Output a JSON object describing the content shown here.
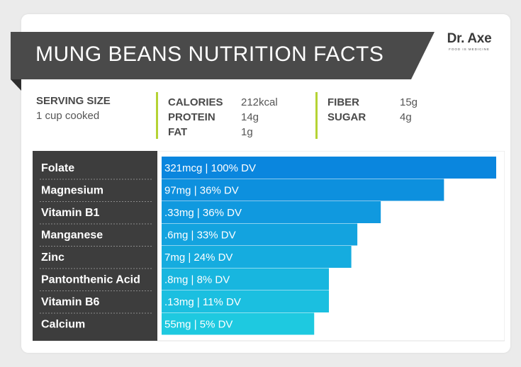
{
  "title": "MUNG BEANS NUTRITION FACTS",
  "brand": {
    "name": "Dr. Axe",
    "tagline": "FOOD IS MEDICINE"
  },
  "facts": {
    "serving_size_label": "SERVING SIZE",
    "serving_size_value": "1 cup cooked",
    "calories_label": "CALORIES",
    "calories_value": "212kcal",
    "protein_label": "PROTEIN",
    "protein_value": "14g",
    "fat_label": "FAT",
    "fat_value": "1g",
    "fiber_label": "FIBER",
    "fiber_value": "15g",
    "sugar_label": "SUGAR",
    "sugar_value": "4g"
  },
  "colors": {
    "banner": "#4a4a4a",
    "accent": "#b5d334",
    "label_panel": "#3d3d3d",
    "bar_top": "#0a86de",
    "bar_bottom": "#1ec9e0"
  },
  "chart_data": {
    "type": "bar",
    "orientation": "horizontal",
    "categories": [
      "Folate",
      "Magnesium",
      "Vitamin B1",
      "Manganese",
      "Zinc",
      "Pantonthenic Acid",
      "Vitamin B6",
      "Calcium"
    ],
    "values": [
      100,
      36,
      36,
      33,
      24,
      8,
      11,
      5
    ],
    "labels": [
      "321mcg | 100% DV",
      "97mg | 36% DV",
      ".33mg | 36% DV",
      ".6mg | 33% DV",
      "7mg | 24% DV",
      ".8mg | 8% DV",
      ".13mg | 11% DV",
      "55mg | 5% DV"
    ],
    "bar_lengths": [
      100,
      84.4,
      65.5,
      58.5,
      56.7,
      50.0,
      50.0,
      45.6
    ]
  }
}
